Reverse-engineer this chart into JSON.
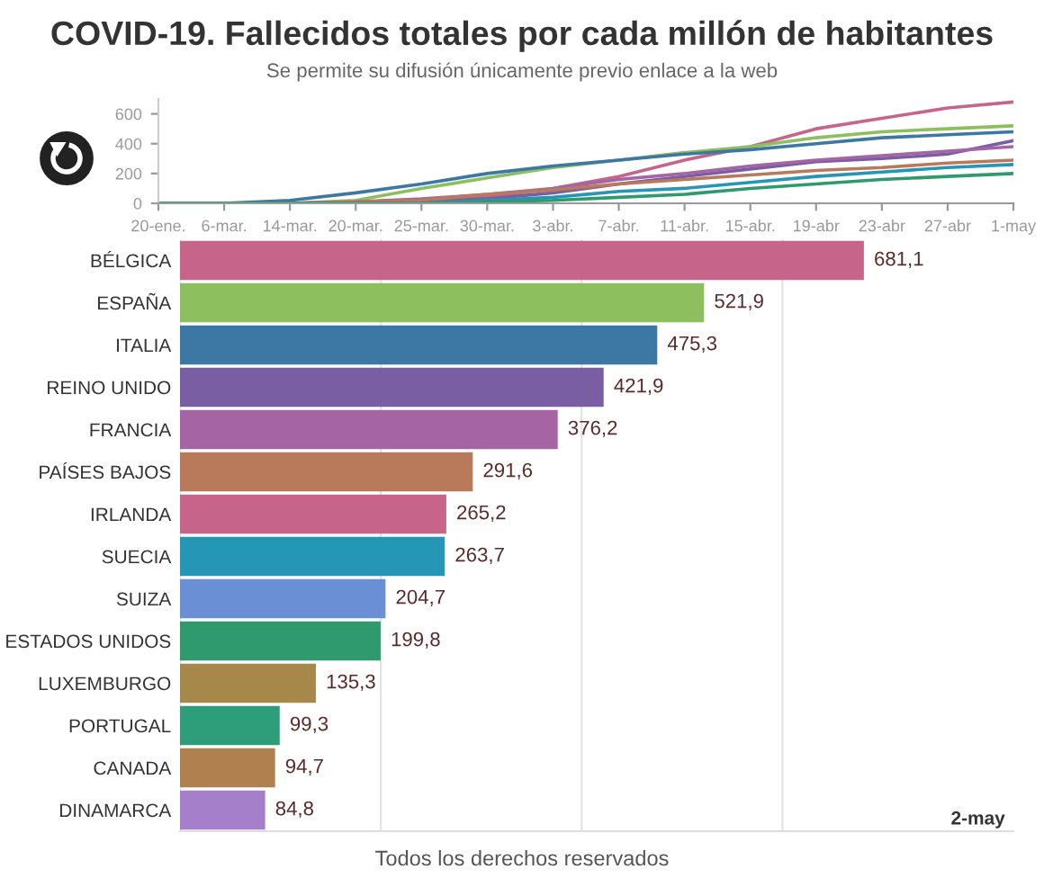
{
  "chart_data": [
    {
      "type": "line",
      "title": "COVID-19. Fallecidos totales por cada millón de habitantes",
      "subtitle": "Se permite su difusión únicamente previo enlace a la web",
      "categories": [
        "20-ene.",
        "6-mar.",
        "14-mar.",
        "20-mar.",
        "25-mar.",
        "30-mar.",
        "3-abr.",
        "7-abr.",
        "11-abr.",
        "15-abr.",
        "19-abr",
        "23-abr",
        "27-abr",
        "1-may"
      ],
      "series": [
        {
          "color": "#c7648a",
          "values": [
            0,
            0,
            0,
            0,
            10,
            40,
            100,
            180,
            290,
            380,
            500,
            570,
            640,
            680
          ]
        },
        {
          "color": "#8dbf5e",
          "values": [
            0,
            0,
            0,
            20,
            100,
            170,
            240,
            290,
            340,
            380,
            440,
            480,
            500,
            520
          ]
        },
        {
          "color": "#3d78a5",
          "values": [
            0,
            0,
            20,
            70,
            130,
            200,
            250,
            290,
            330,
            360,
            400,
            440,
            460,
            480
          ]
        },
        {
          "color": "#7a5ea3",
          "values": [
            0,
            0,
            0,
            0,
            10,
            30,
            70,
            130,
            180,
            230,
            280,
            300,
            330,
            420
          ]
        },
        {
          "color": "#a565a5",
          "values": [
            0,
            0,
            0,
            10,
            30,
            60,
            100,
            160,
            200,
            250,
            290,
            320,
            350,
            380
          ]
        },
        {
          "color": "#b87a5a",
          "values": [
            0,
            0,
            0,
            10,
            20,
            60,
            90,
            130,
            160,
            190,
            220,
            240,
            270,
            290
          ]
        },
        {
          "color": "#2596b6",
          "values": [
            0,
            0,
            0,
            0,
            0,
            20,
            40,
            80,
            100,
            140,
            180,
            210,
            240,
            260
          ]
        },
        {
          "color": "#2f9a6e",
          "values": [
            0,
            0,
            0,
            0,
            0,
            10,
            20,
            40,
            60,
            100,
            130,
            160,
            180,
            200
          ]
        }
      ],
      "ylim": [
        0,
        700
      ],
      "yticks": [
        0,
        200,
        400,
        600
      ],
      "grid": false,
      "legend": false
    },
    {
      "type": "bar",
      "orientation": "horizontal",
      "categories": [
        "BÉLGICA",
        "ESPAÑA",
        "ITALIA",
        "REINO UNIDO",
        "FRANCIA",
        "PAÍSES BAJOS",
        "IRLANDA",
        "SUECIA",
        "SUIZA",
        "ESTADOS UNIDOS",
        "LUXEMBURGO",
        "PORTUGAL",
        "CANADA",
        "DINAMARCA"
      ],
      "values": [
        681.1,
        521.9,
        475.3,
        421.9,
        376.2,
        291.6,
        265.2,
        263.7,
        204.7,
        199.8,
        135.3,
        99.3,
        94.7,
        84.8
      ],
      "value_labels": [
        "681,1",
        "521,9",
        "475,3",
        "421,9",
        "376,2",
        "291,6",
        "265,2",
        "263,7",
        "204,7",
        "199,8",
        "135,3",
        "99,3",
        "94,7",
        "84,8"
      ],
      "colors": [
        "#c7648a",
        "#8dbf5e",
        "#3d78a5",
        "#7a5ea3",
        "#a565a5",
        "#b87a5a",
        "#c7648a",
        "#2596b6",
        "#6a8fd4",
        "#2f9a6e",
        "#a6884a",
        "#2e9e7a",
        "#b0804f",
        "#a57fca"
      ],
      "xlim": [
        0,
        830
      ],
      "xticks": [
        {
          "value": 0,
          "label": null
        },
        {
          "value": 200,
          "label": null
        },
        {
          "value": 400,
          "label": null
        },
        {
          "value": 600,
          "label": null
        }
      ],
      "grid": "x",
      "tick_labels": "y",
      "annotations": [
        "2-may",
        "Todos los derechos reservados"
      ]
    }
  ]
}
